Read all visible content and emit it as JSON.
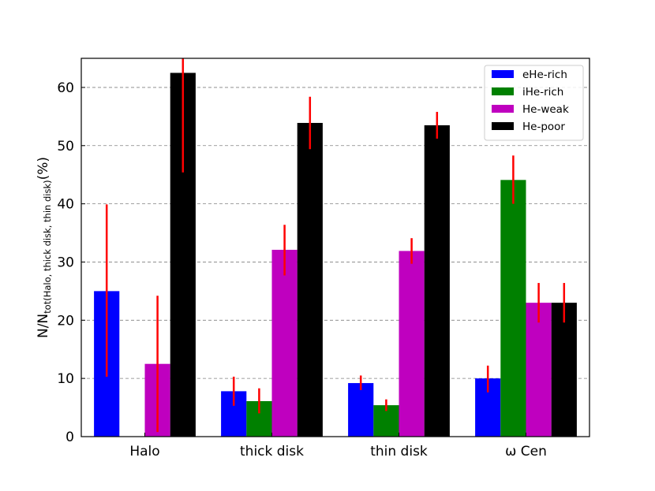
{
  "chart_data": {
    "type": "bar",
    "categories": [
      "Halo",
      "thick disk",
      "thin disk",
      "ω Cen"
    ],
    "ylabel": {
      "main": "N/N",
      "subscript": "tot(Halo, thick disk, thin disk)",
      "unit": "(%)"
    },
    "xlabel": "",
    "ylim": [
      0,
      65
    ],
    "yticks": [
      0,
      10,
      20,
      30,
      40,
      50,
      60
    ],
    "grid": "horizontal dashed",
    "legend_position": "top-right",
    "series": [
      {
        "name": "eHe-rich",
        "color": "#0000ff",
        "values": [
          25.0,
          7.8,
          9.2,
          10.0
        ],
        "err_low": [
          10.3,
          5.3,
          8.0,
          7.6
        ],
        "err_high": [
          39.9,
          10.3,
          10.5,
          12.2
        ]
      },
      {
        "name": "iHe-rich",
        "color": "#008000",
        "values": [
          0,
          6.1,
          5.4,
          44.1
        ],
        "err_low": [
          null,
          4.0,
          4.4,
          40.0
        ],
        "err_high": [
          null,
          8.3,
          6.4,
          48.3
        ]
      },
      {
        "name": "He-weak",
        "color": "#bf00bf",
        "values": [
          12.5,
          32.1,
          31.9,
          23.0
        ],
        "err_low": [
          0.8,
          27.7,
          29.7,
          19.6
        ],
        "err_high": [
          24.2,
          36.4,
          34.1,
          26.4
        ]
      },
      {
        "name": "He-poor",
        "color": "#000000",
        "values": [
          62.5,
          53.9,
          53.5,
          23.0
        ],
        "err_low": [
          45.4,
          49.4,
          51.2,
          19.6
        ],
        "err_high": [
          65.0,
          58.4,
          55.8,
          26.4
        ]
      }
    ],
    "error_bar_color": "#ff0000"
  }
}
